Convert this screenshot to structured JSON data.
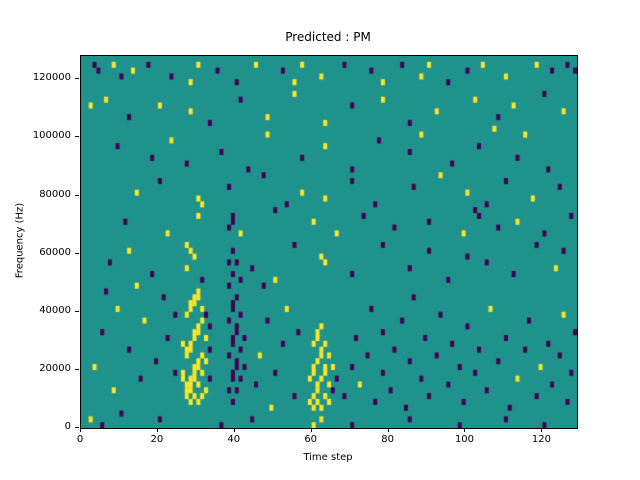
{
  "chart_data": {
    "type": "heatmap",
    "title": "Predicted : PM",
    "xlabel": "Time step",
    "ylabel": "Frequency (Hz)",
    "x_range": [
      0,
      129
    ],
    "y_range": [
      0,
      128000
    ],
    "xticks": [
      0,
      20,
      40,
      60,
      80,
      100,
      120
    ],
    "yticks": [
      0,
      20000,
      40000,
      60000,
      80000,
      100000,
      120000
    ],
    "grid": false,
    "legend": "none",
    "colors": {
      "background_teal": "#20928c",
      "cell_yellow": "#fde725",
      "cell_dark": "#440154",
      "axes": "#000000",
      "figure_background": "#ffffff"
    },
    "bins": {
      "t_bins": 129,
      "f_bins": 64,
      "f_bin_hz": 2000
    },
    "cells_format": "[time_step, freq_bin_of_2000Hz, color_code(1=yellow,2=dark_purple)]",
    "cells": [
      [
        3,
        62,
        2
      ],
      [
        4,
        61,
        2
      ],
      [
        8,
        62,
        1
      ],
      [
        10,
        60,
        2
      ],
      [
        13,
        61,
        1
      ],
      [
        17,
        62,
        2
      ],
      [
        23,
        60,
        2
      ],
      [
        28,
        59,
        1
      ],
      [
        30,
        62,
        1
      ],
      [
        35,
        61,
        2
      ],
      [
        40,
        59,
        2
      ],
      [
        45,
        62,
        1
      ],
      [
        52,
        61,
        2
      ],
      [
        55,
        59,
        1
      ],
      [
        57,
        62,
        1
      ],
      [
        62,
        60,
        1
      ],
      [
        68,
        62,
        2
      ],
      [
        75,
        61,
        2
      ],
      [
        78,
        59,
        1
      ],
      [
        83,
        62,
        2
      ],
      [
        88,
        60,
        1
      ],
      [
        90,
        62,
        1
      ],
      [
        95,
        59,
        2
      ],
      [
        100,
        61,
        2
      ],
      [
        104,
        62,
        1
      ],
      [
        110,
        60,
        1
      ],
      [
        118,
        62,
        1
      ],
      [
        122,
        61,
        2
      ],
      [
        126,
        62,
        2
      ],
      [
        128,
        61,
        2
      ],
      [
        2,
        55,
        1
      ],
      [
        6,
        56,
        1
      ],
      [
        12,
        53,
        2
      ],
      [
        20,
        55,
        1
      ],
      [
        28,
        54,
        1
      ],
      [
        33,
        52,
        2
      ],
      [
        41,
        56,
        2
      ],
      [
        48,
        53,
        1
      ],
      [
        55,
        57,
        1
      ],
      [
        63,
        52,
        1
      ],
      [
        70,
        55,
        2
      ],
      [
        78,
        56,
        1
      ],
      [
        85,
        52,
        2
      ],
      [
        92,
        54,
        1
      ],
      [
        102,
        56,
        1
      ],
      [
        108,
        53,
        2
      ],
      [
        112,
        55,
        1
      ],
      [
        120,
        57,
        2
      ],
      [
        125,
        54,
        1
      ],
      [
        9,
        48,
        2
      ],
      [
        18,
        46,
        2
      ],
      [
        23,
        49,
        1
      ],
      [
        27,
        45,
        2
      ],
      [
        36,
        47,
        2
      ],
      [
        43,
        44,
        2
      ],
      [
        48,
        50,
        1
      ],
      [
        57,
        46,
        2
      ],
      [
        63,
        48,
        1
      ],
      [
        70,
        44,
        2
      ],
      [
        77,
        49,
        2
      ],
      [
        85,
        47,
        2
      ],
      [
        88,
        50,
        1
      ],
      [
        96,
        45,
        2
      ],
      [
        103,
        48,
        2
      ],
      [
        107,
        51,
        1
      ],
      [
        113,
        46,
        2
      ],
      [
        115,
        50,
        1
      ],
      [
        121,
        44,
        2
      ],
      [
        14,
        40,
        1
      ],
      [
        20,
        42,
        2
      ],
      [
        30,
        39,
        1
      ],
      [
        31,
        38,
        1
      ],
      [
        38,
        41,
        2
      ],
      [
        47,
        43,
        2
      ],
      [
        53,
        38,
        2
      ],
      [
        57,
        40,
        1
      ],
      [
        63,
        39,
        1
      ],
      [
        70,
        42,
        2
      ],
      [
        76,
        38,
        2
      ],
      [
        86,
        41,
        2
      ],
      [
        93,
        43,
        1
      ],
      [
        100,
        40,
        1
      ],
      [
        105,
        38,
        2
      ],
      [
        110,
        42,
        2
      ],
      [
        117,
        39,
        1
      ],
      [
        124,
        41,
        2
      ],
      [
        11,
        35,
        2
      ],
      [
        22,
        33,
        1
      ],
      [
        30,
        36,
        1
      ],
      [
        38,
        34,
        2
      ],
      [
        39,
        35,
        2
      ],
      [
        39,
        36,
        2
      ],
      [
        41,
        33,
        1
      ],
      [
        50,
        37,
        2
      ],
      [
        60,
        35,
        1
      ],
      [
        66,
        33,
        1
      ],
      [
        73,
        36,
        2
      ],
      [
        81,
        34,
        2
      ],
      [
        90,
        35,
        2
      ],
      [
        99,
        33,
        1
      ],
      [
        102,
        37,
        2
      ],
      [
        103,
        36,
        2
      ],
      [
        108,
        34,
        2
      ],
      [
        113,
        35,
        1
      ],
      [
        120,
        33,
        2
      ],
      [
        127,
        36,
        2
      ],
      [
        7,
        28,
        2
      ],
      [
        12,
        30,
        1
      ],
      [
        18,
        26,
        2
      ],
      [
        27,
        31,
        1
      ],
      [
        28,
        30,
        1
      ],
      [
        29,
        29,
        1
      ],
      [
        27,
        27,
        1
      ],
      [
        31,
        25,
        2
      ],
      [
        38,
        28,
        2
      ],
      [
        39,
        30,
        2
      ],
      [
        44,
        27,
        2
      ],
      [
        50,
        25,
        1
      ],
      [
        55,
        31,
        2
      ],
      [
        62,
        29,
        1
      ],
      [
        63,
        28,
        1
      ],
      [
        70,
        26,
        2
      ],
      [
        78,
        31,
        2
      ],
      [
        85,
        27,
        2
      ],
      [
        90,
        30,
        2
      ],
      [
        95,
        25,
        2
      ],
      [
        100,
        29,
        2
      ],
      [
        105,
        28,
        2
      ],
      [
        112,
        26,
        2
      ],
      [
        118,
        31,
        2
      ],
      [
        123,
        27,
        1
      ],
      [
        125,
        30,
        2
      ],
      [
        26,
        8,
        1
      ],
      [
        26,
        9,
        1
      ],
      [
        26,
        14,
        1
      ],
      [
        27,
        5,
        1
      ],
      [
        27,
        6,
        1
      ],
      [
        27,
        7,
        1
      ],
      [
        27,
        12,
        1
      ],
      [
        27,
        13,
        1
      ],
      [
        27,
        19,
        1
      ],
      [
        28,
        4,
        1
      ],
      [
        28,
        6,
        1
      ],
      [
        28,
        7,
        1
      ],
      [
        28,
        8,
        1
      ],
      [
        28,
        13,
        1
      ],
      [
        28,
        14,
        1
      ],
      [
        28,
        20,
        1
      ],
      [
        28,
        21,
        1
      ],
      [
        29,
        5,
        1
      ],
      [
        29,
        8,
        1
      ],
      [
        29,
        9,
        1
      ],
      [
        29,
        10,
        1
      ],
      [
        29,
        15,
        1
      ],
      [
        29,
        16,
        1
      ],
      [
        29,
        21,
        1
      ],
      [
        29,
        22,
        1
      ],
      [
        30,
        4,
        1
      ],
      [
        30,
        7,
        1
      ],
      [
        30,
        10,
        1
      ],
      [
        30,
        11,
        1
      ],
      [
        30,
        16,
        1
      ],
      [
        30,
        17,
        1
      ],
      [
        30,
        22,
        1
      ],
      [
        30,
        23,
        1
      ],
      [
        31,
        5,
        1
      ],
      [
        31,
        9,
        1
      ],
      [
        31,
        12,
        1
      ],
      [
        31,
        18,
        1
      ],
      [
        31,
        20,
        1
      ],
      [
        32,
        6,
        1
      ],
      [
        32,
        11,
        1
      ],
      [
        32,
        15,
        1
      ],
      [
        32,
        19,
        2
      ],
      [
        33,
        8,
        2
      ],
      [
        33,
        13,
        2
      ],
      [
        33,
        17,
        2
      ],
      [
        38,
        6,
        2
      ],
      [
        38,
        12,
        2
      ],
      [
        38,
        18,
        2
      ],
      [
        38,
        24,
        2
      ],
      [
        39,
        4,
        2
      ],
      [
        39,
        8,
        2
      ],
      [
        39,
        9,
        2
      ],
      [
        39,
        14,
        2
      ],
      [
        39,
        15,
        2
      ],
      [
        39,
        20,
        2
      ],
      [
        39,
        21,
        2
      ],
      [
        39,
        26,
        2
      ],
      [
        40,
        6,
        2
      ],
      [
        40,
        10,
        2
      ],
      [
        40,
        11,
        2
      ],
      [
        40,
        16,
        2
      ],
      [
        40,
        17,
        2
      ],
      [
        40,
        22,
        2
      ],
      [
        40,
        28,
        2
      ],
      [
        41,
        8,
        2
      ],
      [
        41,
        13,
        2
      ],
      [
        41,
        19,
        2
      ],
      [
        41,
        25,
        2
      ],
      [
        42,
        10,
        2
      ],
      [
        42,
        15,
        2
      ],
      [
        45,
        7,
        2
      ],
      [
        46,
        12,
        1
      ],
      [
        48,
        18,
        2
      ],
      [
        50,
        9,
        2
      ],
      [
        52,
        14,
        2
      ],
      [
        53,
        20,
        1
      ],
      [
        55,
        5,
        2
      ],
      [
        56,
        16,
        2
      ],
      [
        47,
        24,
        2
      ],
      [
        49,
        3,
        1
      ],
      [
        59,
        4,
        1
      ],
      [
        59,
        8,
        1
      ],
      [
        60,
        3,
        1
      ],
      [
        60,
        5,
        1
      ],
      [
        60,
        9,
        1
      ],
      [
        60,
        10,
        1
      ],
      [
        60,
        14,
        1
      ],
      [
        61,
        4,
        1
      ],
      [
        61,
        6,
        1
      ],
      [
        61,
        7,
        1
      ],
      [
        61,
        11,
        1
      ],
      [
        61,
        15,
        1
      ],
      [
        61,
        16,
        1
      ],
      [
        62,
        3,
        1
      ],
      [
        62,
        8,
        1
      ],
      [
        62,
        12,
        1
      ],
      [
        62,
        13,
        1
      ],
      [
        62,
        17,
        1
      ],
      [
        63,
        5,
        1
      ],
      [
        63,
        9,
        1
      ],
      [
        63,
        10,
        1
      ],
      [
        63,
        14,
        1
      ],
      [
        64,
        4,
        1
      ],
      [
        64,
        7,
        1
      ],
      [
        64,
        12,
        1
      ],
      [
        65,
        6,
        2
      ],
      [
        65,
        10,
        1
      ],
      [
        66,
        8,
        2
      ],
      [
        68,
        5,
        2
      ],
      [
        70,
        10,
        2
      ],
      [
        71,
        15,
        2
      ],
      [
        72,
        7,
        1
      ],
      [
        74,
        12,
        2
      ],
      [
        75,
        20,
        2
      ],
      [
        76,
        4,
        2
      ],
      [
        78,
        9,
        2
      ],
      [
        78,
        16,
        2
      ],
      [
        80,
        6,
        2
      ],
      [
        81,
        13,
        2
      ],
      [
        83,
        18,
        2
      ],
      [
        84,
        3,
        2
      ],
      [
        85,
        11,
        2
      ],
      [
        86,
        22,
        2
      ],
      [
        88,
        8,
        2
      ],
      [
        89,
        15,
        2
      ],
      [
        90,
        5,
        2
      ],
      [
        92,
        12,
        2
      ],
      [
        93,
        19,
        2
      ],
      [
        95,
        7,
        2
      ],
      [
        96,
        14,
        2
      ],
      [
        98,
        10,
        2
      ],
      [
        99,
        4,
        2
      ],
      [
        100,
        17,
        2
      ],
      [
        102,
        9,
        2
      ],
      [
        103,
        13,
        2
      ],
      [
        105,
        6,
        2
      ],
      [
        106,
        20,
        1
      ],
      [
        108,
        11,
        2
      ],
      [
        110,
        15,
        2
      ],
      [
        111,
        3,
        2
      ],
      [
        113,
        8,
        1
      ],
      [
        115,
        13,
        2
      ],
      [
        116,
        18,
        2
      ],
      [
        118,
        5,
        2
      ],
      [
        119,
        10,
        1
      ],
      [
        121,
        14,
        2
      ],
      [
        122,
        7,
        2
      ],
      [
        124,
        12,
        2
      ],
      [
        125,
        19,
        1
      ],
      [
        126,
        4,
        2
      ],
      [
        127,
        9,
        2
      ],
      [
        128,
        16,
        2
      ],
      [
        2,
        1,
        1
      ],
      [
        5,
        0,
        2
      ],
      [
        10,
        2,
        2
      ],
      [
        20,
        1,
        2
      ],
      [
        36,
        0,
        2
      ],
      [
        44,
        1,
        2
      ],
      [
        60,
        0,
        1
      ],
      [
        62,
        1,
        1
      ],
      [
        70,
        0,
        2
      ],
      [
        85,
        1,
        2
      ],
      [
        98,
        0,
        2
      ],
      [
        110,
        1,
        2
      ],
      [
        120,
        0,
        2
      ],
      [
        3,
        10,
        1
      ],
      [
        5,
        16,
        2
      ],
      [
        8,
        6,
        1
      ],
      [
        9,
        20,
        1
      ],
      [
        12,
        13,
        2
      ],
      [
        15,
        8,
        2
      ],
      [
        16,
        18,
        1
      ],
      [
        19,
        11,
        2
      ],
      [
        21,
        22,
        2
      ],
      [
        22,
        15,
        2
      ],
      [
        24,
        9,
        2
      ],
      [
        24,
        19,
        2
      ],
      [
        6,
        23,
        2
      ],
      [
        14,
        24,
        1
      ]
    ]
  }
}
